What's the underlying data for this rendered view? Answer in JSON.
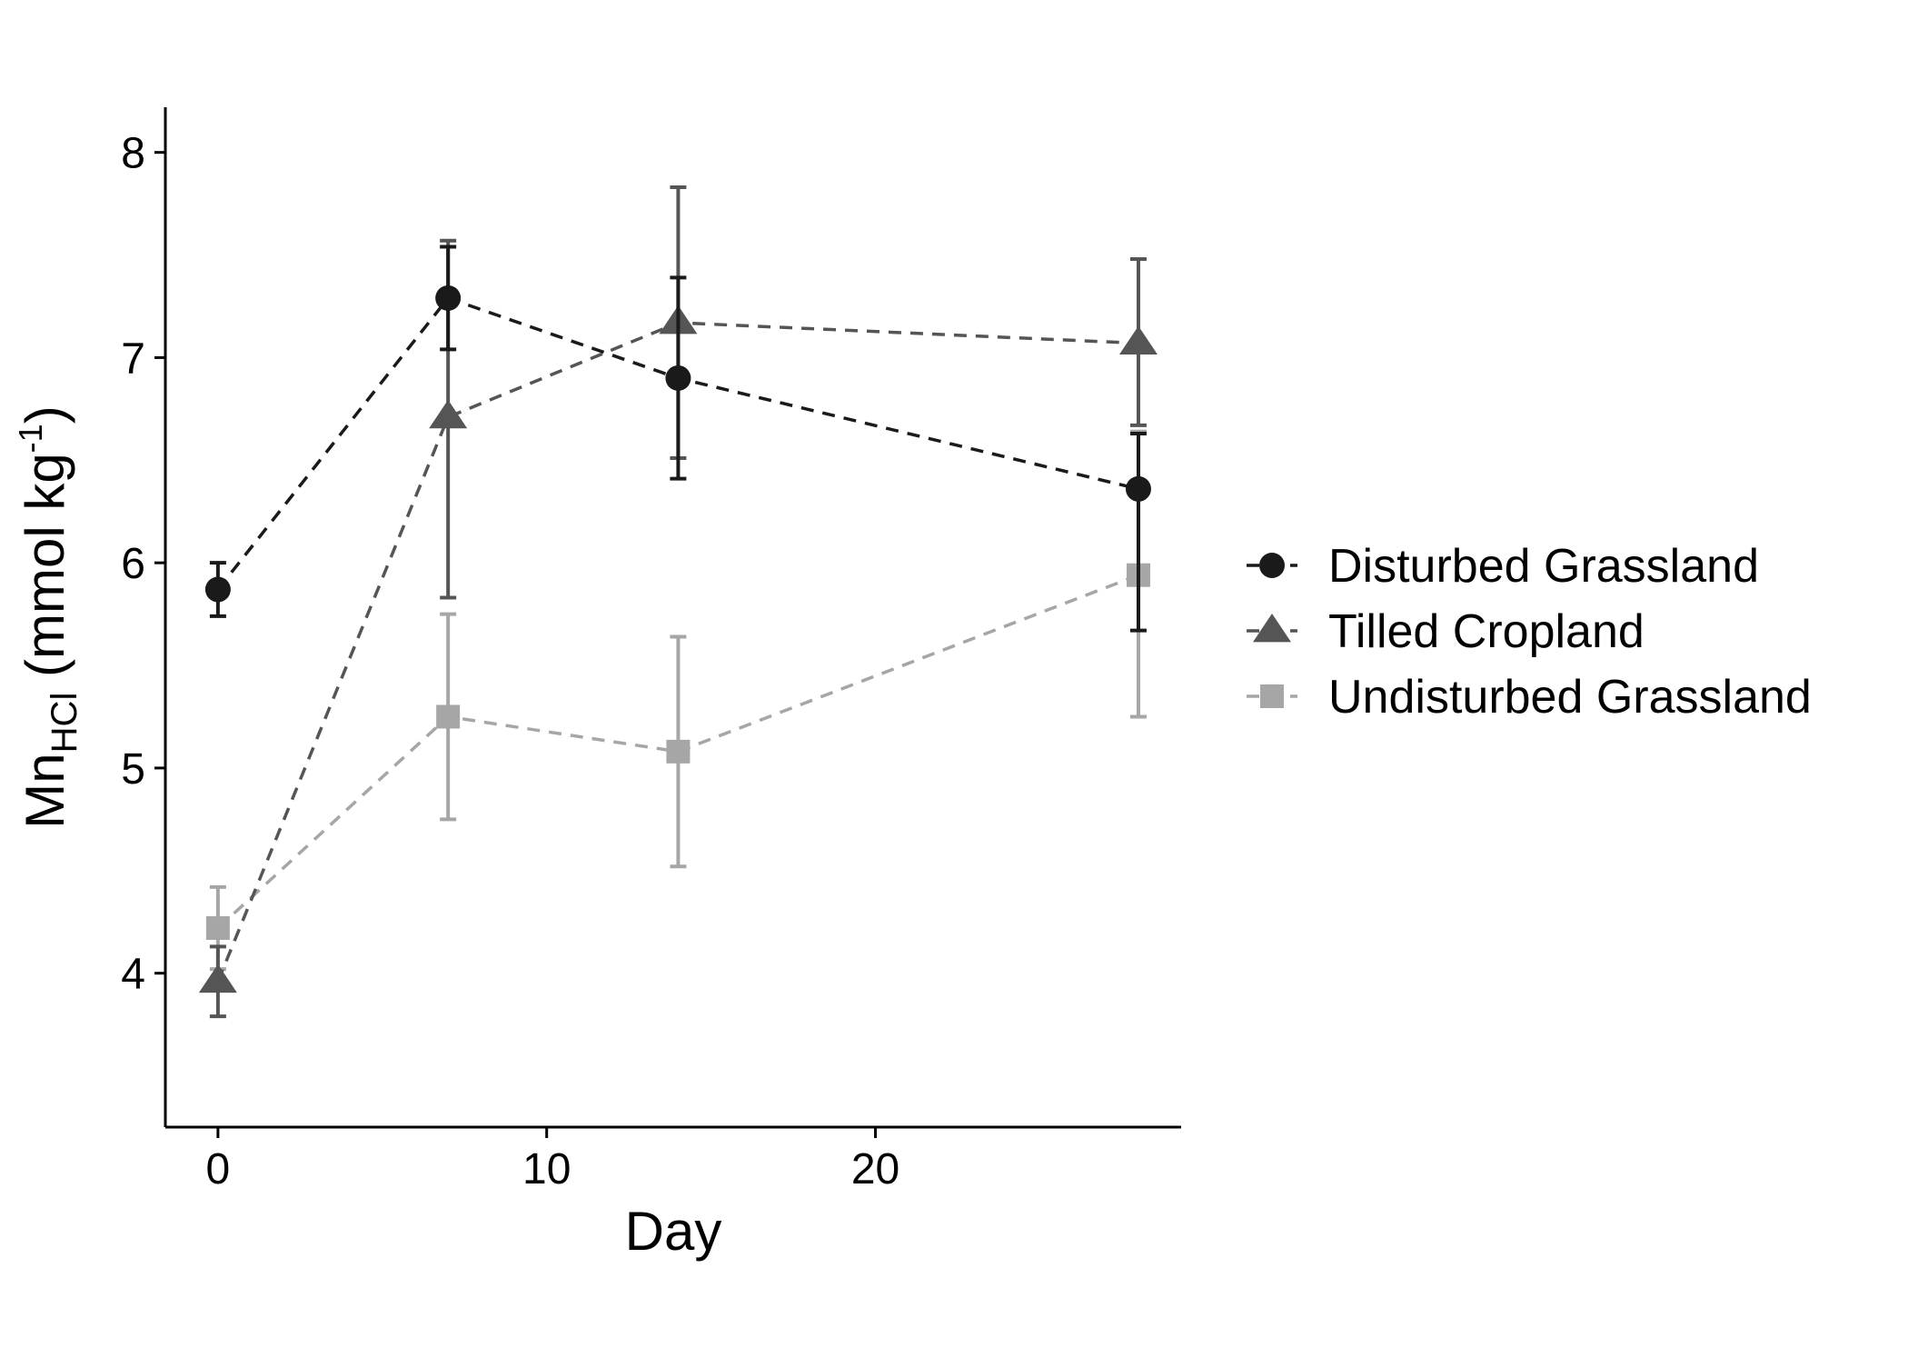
{
  "chart_data": {
    "type": "line",
    "xlabel": "Day",
    "ylabel": {
      "main": "Mn",
      "subscript": "HCl",
      "unit_open": " (mmol kg",
      "superscript": "-1",
      "unit_close": ")"
    },
    "xlim": [
      -1.6,
      29.3
    ],
    "ylim": [
      3.25,
      8.22
    ],
    "x_ticks": [
      0,
      10,
      20
    ],
    "x_tick_labels": [
      "0",
      "10",
      "20"
    ],
    "y_ticks": [
      4,
      5,
      6,
      7,
      8
    ],
    "y_tick_labels": [
      "4",
      "5",
      "6",
      "7",
      "8"
    ],
    "grid": false,
    "legend_position": "right",
    "line_style": "dashed",
    "series": [
      {
        "name": "Disturbed Grassland",
        "marker": "circle",
        "color": "#1a1a1a",
        "x": [
          0,
          7,
          14,
          28
        ],
        "y": [
          5.87,
          7.29,
          6.9,
          6.36
        ],
        "err_low": [
          5.74,
          7.04,
          6.41,
          5.67
        ],
        "err_high": [
          6.0,
          7.54,
          7.39,
          6.63
        ]
      },
      {
        "name": "Tilled Cropland",
        "marker": "triangle",
        "color": "#555555",
        "x": [
          0,
          7,
          14,
          28
        ],
        "y": [
          3.96,
          6.71,
          7.17,
          7.07
        ],
        "err_low": [
          3.79,
          5.83,
          6.51,
          6.67
        ],
        "err_high": [
          4.13,
          7.57,
          7.83,
          7.48
        ]
      },
      {
        "name": "Undisturbed Grassland",
        "marker": "square",
        "color": "#a6a6a6",
        "x": [
          0,
          7,
          14,
          28
        ],
        "y": [
          4.22,
          5.25,
          5.08,
          5.94
        ],
        "err_low": [
          4.02,
          4.75,
          4.52,
          5.25
        ],
        "err_high": [
          4.42,
          5.75,
          5.64,
          6.64
        ]
      }
    ]
  }
}
